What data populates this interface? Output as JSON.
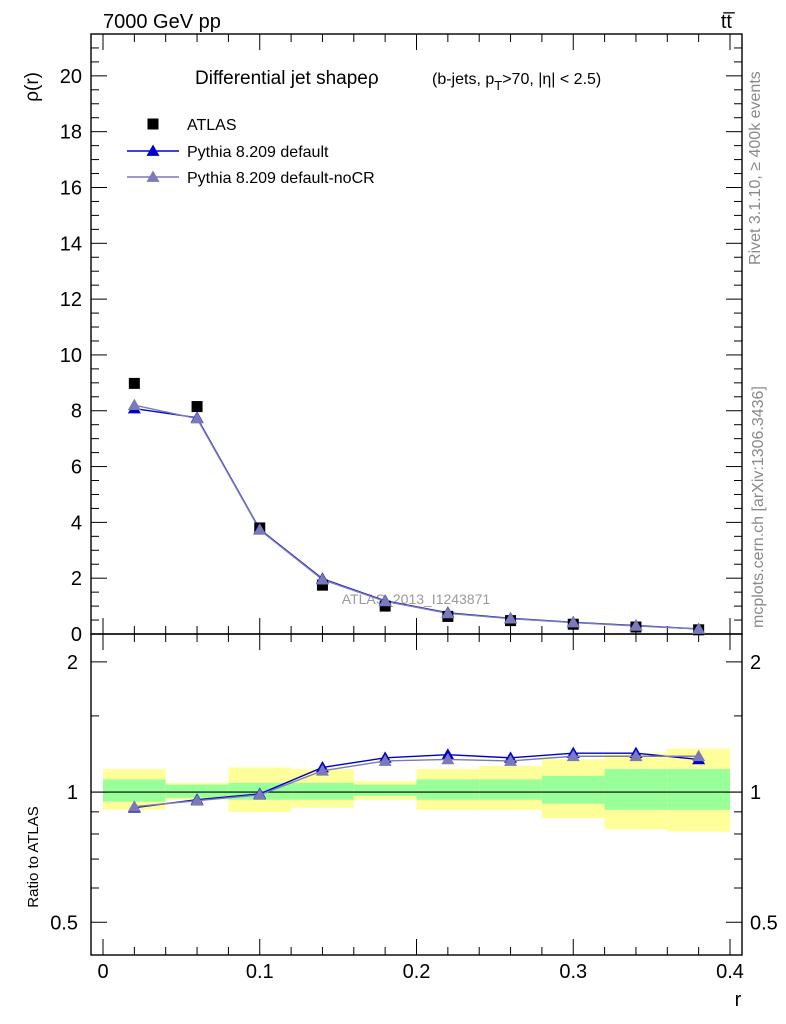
{
  "header": {
    "left": "7000 GeV pp",
    "right": "tt̅"
  },
  "side_texts": {
    "rivet": "Rivet 3.1.10, ≥ 400k events",
    "mcplots": "mcplots.cern.ch [arXiv:1306.3436]"
  },
  "watermark": "ATLAS_2013_I1243871",
  "chart_data": [
    {
      "type": "scatter",
      "panel": "main",
      "title": "Differential jet shapeρ",
      "title_cuts": "(b-jets, p",
      "title_cuts_sub": "T",
      "title_cuts_rest": ">70, |η| < 2.5)",
      "xlabel": "r",
      "ylabel": "ρ(r)",
      "xlim": [
        0,
        0.4
      ],
      "ylim": [
        0,
        21.5
      ],
      "x_ticks": [
        0,
        0.1,
        0.2,
        0.3,
        0.4
      ],
      "x_tick_labels": [
        "0",
        "0.1",
        "0.2",
        "0.3",
        "0.4"
      ],
      "y_ticks": [
        0,
        2,
        4,
        6,
        8,
        10,
        12,
        14,
        16,
        18,
        20
      ],
      "y_tick_labels": [
        "0",
        "2",
        "4",
        "6",
        "8",
        "10",
        "12",
        "14",
        "16",
        "18",
        "20"
      ],
      "legend_position": "top-left",
      "x": [
        0.02,
        0.06,
        0.1,
        0.14,
        0.18,
        0.22,
        0.26,
        0.3,
        0.34,
        0.38
      ],
      "series": [
        {
          "name": "ATLAS",
          "marker": "square",
          "color": "#000000",
          "values": [
            8.98,
            8.15,
            3.8,
            1.75,
            1.0,
            0.63,
            0.48,
            0.35,
            0.25,
            0.15
          ]
        },
        {
          "name": "Pythia 8.209 default",
          "marker": "triangle",
          "color": "#0000cc",
          "values": [
            8.08,
            7.75,
            3.75,
            1.98,
            1.19,
            0.76,
            0.56,
            0.42,
            0.3,
            0.18
          ]
        },
        {
          "name": "Pythia 8.209 default-noCR",
          "marker": "triangle",
          "color": "#7a7ab8",
          "values": [
            8.2,
            7.72,
            3.73,
            1.95,
            1.17,
            0.74,
            0.55,
            0.41,
            0.29,
            0.18
          ]
        }
      ]
    },
    {
      "type": "scatter",
      "panel": "ratio",
      "xlabel": "r",
      "ylabel": "Ratio to ATLAS",
      "xlim": [
        0,
        0.4
      ],
      "ylim": [
        0.42,
        2.32
      ],
      "y_scale": "log",
      "x_ticks": [
        0,
        0.1,
        0.2,
        0.3,
        0.4
      ],
      "x_tick_labels": [
        "0",
        "0.1",
        "0.2",
        "0.3",
        "0.4"
      ],
      "y_ticks": [
        0.5,
        1,
        2
      ],
      "y_tick_labels": [
        "0.5",
        "1",
        "2"
      ],
      "x": [
        0.02,
        0.06,
        0.1,
        0.14,
        0.18,
        0.22,
        0.26,
        0.3,
        0.34,
        0.38
      ],
      "bands": {
        "edges": [
          0.0,
          0.04,
          0.08,
          0.12,
          0.16,
          0.2,
          0.24,
          0.28,
          0.32,
          0.36,
          0.4
        ],
        "inner": [
          [
            0.95,
            1.07
          ],
          [
            0.97,
            1.04
          ],
          [
            0.96,
            1.05
          ],
          [
            0.96,
            1.05
          ],
          [
            0.98,
            1.04
          ],
          [
            0.96,
            1.07
          ],
          [
            0.96,
            1.07
          ],
          [
            0.94,
            1.09
          ],
          [
            0.91,
            1.13
          ],
          [
            0.91,
            1.13
          ]
        ],
        "outer": [
          [
            0.91,
            1.13
          ],
          [
            0.96,
            1.05
          ],
          [
            0.9,
            1.14
          ],
          [
            0.92,
            1.13
          ],
          [
            0.96,
            1.06
          ],
          [
            0.91,
            1.13
          ],
          [
            0.91,
            1.15
          ],
          [
            0.87,
            1.19
          ],
          [
            0.82,
            1.23
          ],
          [
            0.81,
            1.26
          ]
        ],
        "inner_color": "#99ff99",
        "outer_color": "#ffff99"
      },
      "series": [
        {
          "name": "Pythia 8.209 default",
          "marker": "triangle",
          "color": "#0000cc",
          "values": [
            0.92,
            0.96,
            0.99,
            1.14,
            1.2,
            1.22,
            1.2,
            1.23,
            1.23,
            1.19
          ]
        },
        {
          "name": "Pythia 8.209 default-noCR",
          "marker": "triangle",
          "color": "#7a7ab8",
          "values": [
            0.925,
            0.955,
            0.985,
            1.12,
            1.18,
            1.19,
            1.18,
            1.21,
            1.21,
            1.21
          ]
        }
      ]
    }
  ]
}
